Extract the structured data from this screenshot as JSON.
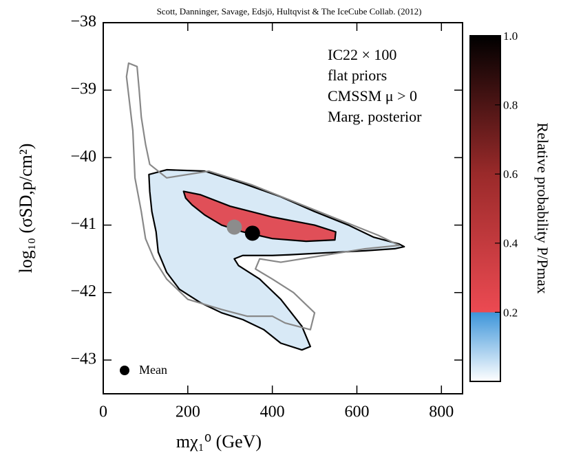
{
  "chart_data": {
    "type": "contour",
    "credit": "Scott, Danninger, Savage, Edsjö, Hultqvist & The IceCube Collab. (2012)",
    "annotations": [
      "IC22 × 100",
      "flat priors",
      "CMSSM μ > 0",
      "Marg. posterior"
    ],
    "xlabel": "mχ₁⁰ (GeV)",
    "ylabel": "log₁₀ (σSD,p/cm²)",
    "xlim": [
      0,
      850
    ],
    "ylim": [
      -43.5,
      -38
    ],
    "xticks": [
      0,
      200,
      400,
      600,
      800
    ],
    "yticks": [
      {
        "value": -43,
        "label": "−43"
      },
      {
        "value": -42,
        "label": "−42"
      },
      {
        "value": -41,
        "label": "−41"
      },
      {
        "value": -40,
        "label": "−40"
      },
      {
        "value": -39,
        "label": "−39"
      },
      {
        "value": -38,
        "label": "−38"
      }
    ],
    "series": [
      {
        "color": "#888888",
        "fill": "none",
        "x": [
          60,
          80,
          85,
          90,
          100,
          110,
          150,
          250,
          350,
          450,
          550,
          650,
          700,
          620,
          520,
          420,
          370,
          360,
          400,
          450,
          500,
          490,
          430,
          400,
          340,
          280,
          200,
          150,
          120,
          100,
          90,
          75,
          70,
          55
        ],
        "y": [
          -38.6,
          -38.65,
          -39.0,
          -39.4,
          -39.8,
          -40.1,
          -40.3,
          -40.2,
          -40.4,
          -40.65,
          -40.9,
          -41.15,
          -41.3,
          -41.35,
          -41.45,
          -41.55,
          -41.5,
          -41.65,
          -41.8,
          -42.0,
          -42.3,
          -42.55,
          -42.45,
          -42.35,
          -42.35,
          -42.25,
          -42.1,
          -41.8,
          -41.5,
          -41.2,
          -40.8,
          -40.3,
          -39.6,
          -38.8
        ]
      },
      {
        "color": "#000000",
        "fill": "#d6e8f6",
        "x": [
          108,
          150,
          240,
          330,
          420,
          500,
          580,
          640,
          700,
          712,
          690,
          620,
          560,
          500,
          440,
          400,
          330,
          310,
          320,
          370,
          420,
          470,
          490,
          470,
          420,
          380,
          330,
          280,
          230,
          180,
          150,
          130,
          125,
          115,
          110
        ],
        "y": [
          -40.25,
          -40.18,
          -40.2,
          -40.38,
          -40.58,
          -40.8,
          -41.0,
          -41.18,
          -41.28,
          -41.32,
          -41.35,
          -41.38,
          -41.4,
          -41.42,
          -41.44,
          -41.45,
          -41.45,
          -41.5,
          -41.6,
          -41.8,
          -42.1,
          -42.5,
          -42.8,
          -42.85,
          -42.75,
          -42.55,
          -42.4,
          -42.3,
          -42.15,
          -41.95,
          -41.7,
          -41.4,
          -41.1,
          -40.8,
          -40.5
        ]
      },
      {
        "color": "#000000",
        "fill": "#e0474f",
        "x": [
          190,
          230,
          300,
          400,
          500,
          550,
          548,
          480,
          400,
          330,
          280,
          240,
          210,
          195
        ],
        "y": [
          -40.5,
          -40.55,
          -40.72,
          -40.88,
          -41.0,
          -41.1,
          -41.22,
          -41.24,
          -41.2,
          -41.1,
          -41.0,
          -40.85,
          -40.7,
          -40.6
        ]
      }
    ],
    "points": [
      {
        "x": 310,
        "y": -41.03,
        "color": "#8c8c8c"
      },
      {
        "x": 353,
        "y": -41.12,
        "color": "#000000",
        "name": "Mean"
      }
    ],
    "colorbar": {
      "label": "Relative probability P/Pmax",
      "clim": [
        0,
        1
      ],
      "ticks": [
        0.2,
        0.4,
        0.6,
        0.8,
        {
          "value": 1,
          "label": "1.0"
        }
      ],
      "colormap": [
        {
          "value": 0,
          "color": "#ffffff"
        },
        {
          "value": 0.2,
          "color": "#3d95da"
        },
        {
          "value": 0.2,
          "color": "#ec4a52"
        },
        {
          "value": 0.6,
          "color": "#9a2a2a"
        },
        {
          "value": 1,
          "color": "#000000"
        }
      ]
    }
  }
}
